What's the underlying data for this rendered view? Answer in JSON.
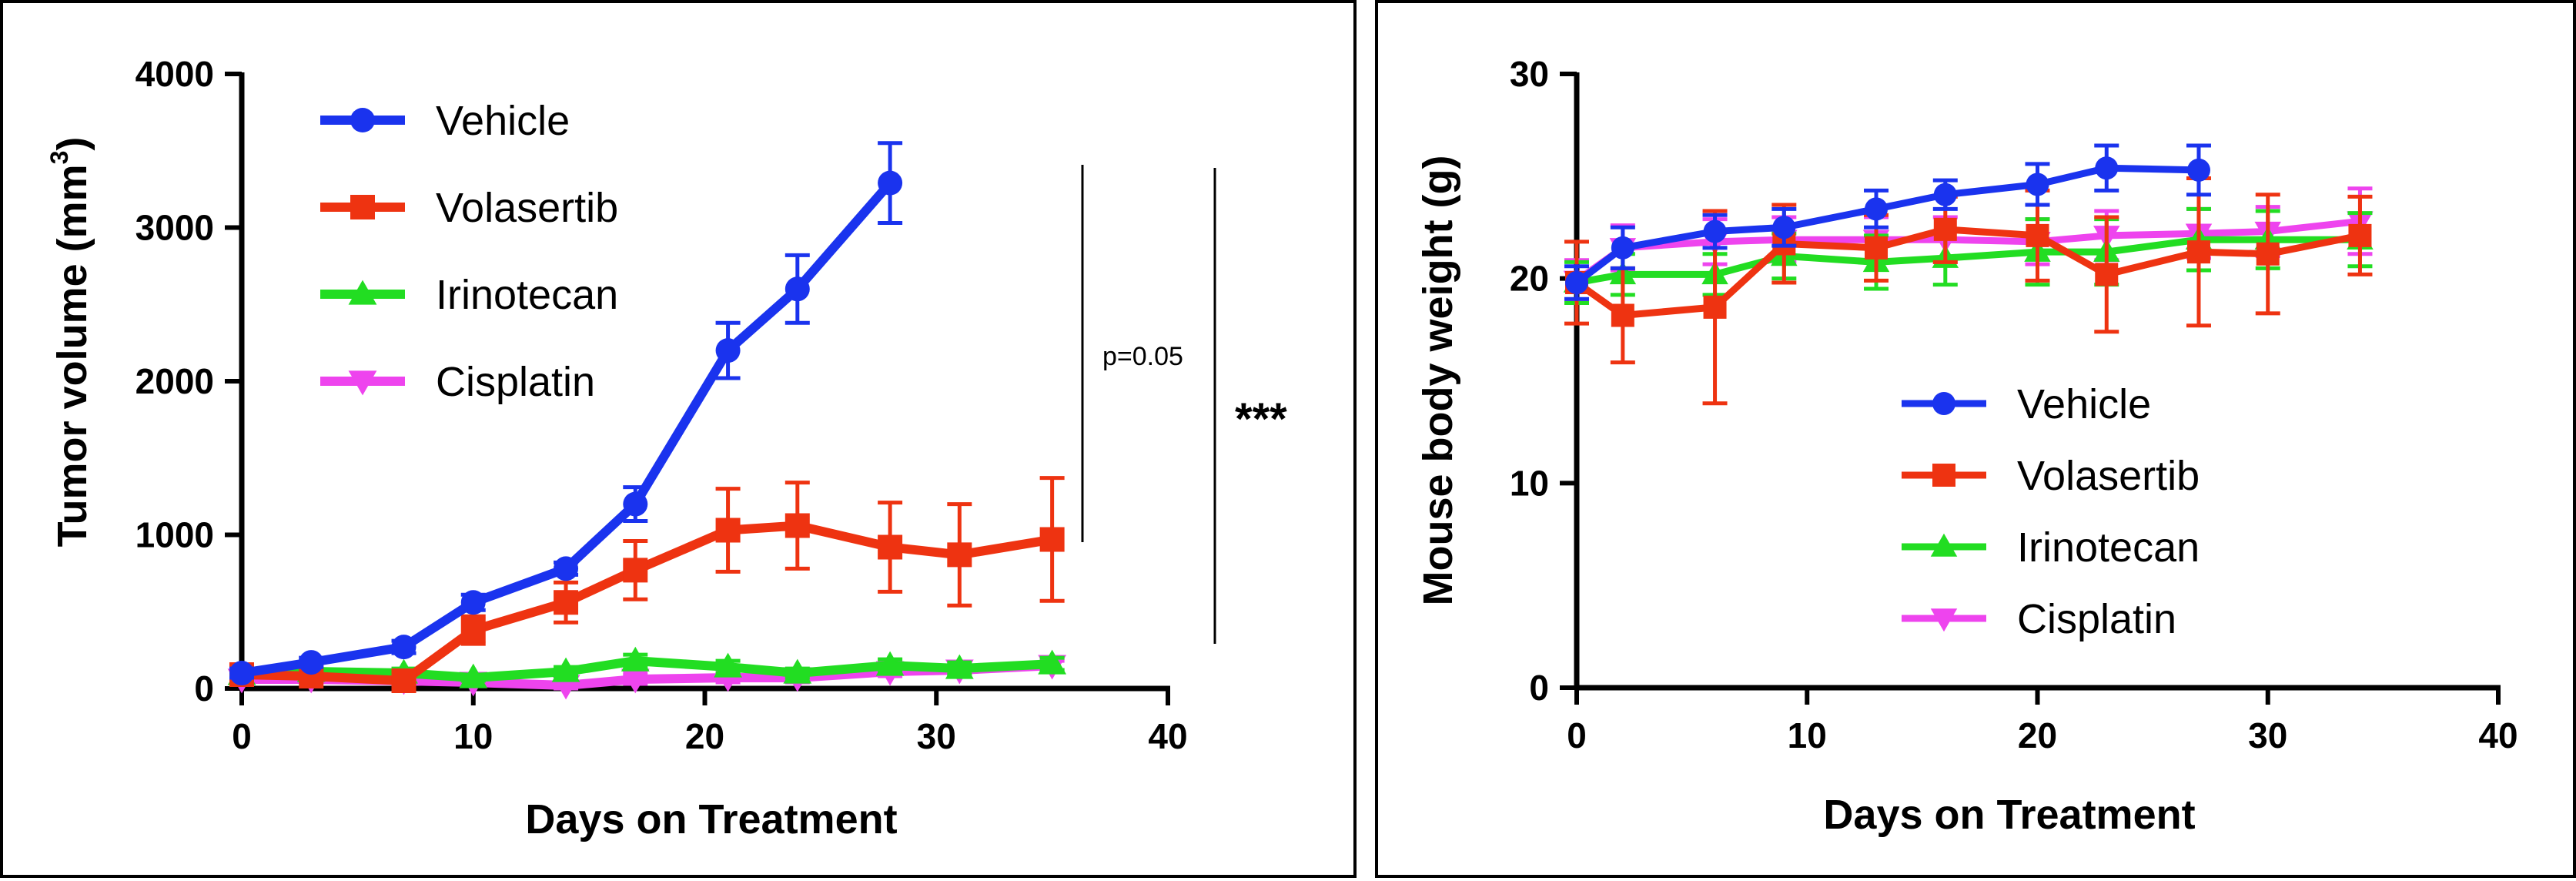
{
  "chart_data": [
    {
      "type": "line",
      "panel": "left",
      "xlabel": "Days on Treatment",
      "ylabel_main": "Tumor volume (mm",
      "ylabel_sup": "3",
      "ylabel_end": ")",
      "xlim": [
        0,
        40
      ],
      "ylim": [
        0,
        4000
      ],
      "xticks": [
        0,
        10,
        20,
        30,
        40
      ],
      "yticks": [
        0,
        1000,
        2000,
        3000,
        4000
      ],
      "xtick_labels": [
        "0",
        "10",
        "20",
        "30",
        "40"
      ],
      "ytick_labels": [
        "0",
        "1000",
        "2000",
        "3000",
        "4000"
      ],
      "legend_position": "top-left",
      "annotations": [
        {
          "text": "p=0.05",
          "kind": "bracket-inner"
        },
        {
          "text": "***",
          "kind": "bracket-outer"
        }
      ],
      "series": [
        {
          "name": "Vehicle",
          "color": "#1a33ee",
          "marker": "circle",
          "x": [
            0,
            3,
            7,
            10,
            14,
            17,
            21,
            24,
            28
          ],
          "y": [
            100,
            170,
            270,
            560,
            780,
            1200,
            2200,
            2600,
            3290
          ],
          "err": [
            30,
            30,
            40,
            50,
            40,
            110,
            180,
            220,
            260
          ]
        },
        {
          "name": "Volasertib",
          "color": "#ee3311",
          "marker": "square",
          "x": [
            0,
            3,
            7,
            10,
            14,
            17,
            21,
            24,
            28,
            31,
            35
          ],
          "y": [
            90,
            80,
            50,
            380,
            560,
            770,
            1030,
            1060,
            920,
            870,
            970
          ],
          "err": [
            30,
            30,
            20,
            90,
            130,
            190,
            270,
            280,
            290,
            330,
            400
          ]
        },
        {
          "name": "Irinotecan",
          "color": "#22dd22",
          "marker": "triangle-up",
          "x": [
            0,
            3,
            7,
            10,
            14,
            17,
            21,
            24,
            28,
            31,
            35
          ],
          "y": [
            90,
            110,
            100,
            70,
            110,
            180,
            140,
            100,
            150,
            130,
            160
          ],
          "err": [
            20,
            20,
            30,
            20,
            30,
            40,
            40,
            30,
            40,
            40,
            40
          ]
        },
        {
          "name": "Cisplatin",
          "color": "#ee44ee",
          "marker": "triangle-down",
          "x": [
            0,
            3,
            7,
            10,
            14,
            17,
            21,
            24,
            28,
            31,
            35
          ],
          "y": [
            60,
            60,
            50,
            40,
            20,
            60,
            70,
            70,
            110,
            120,
            150
          ],
          "err": [
            20,
            20,
            20,
            20,
            20,
            30,
            30,
            30,
            30,
            30,
            30
          ]
        }
      ]
    },
    {
      "type": "line",
      "panel": "right",
      "xlabel": "Days on Treatment",
      "ylabel": "Mouse body weight (g)",
      "xlim": [
        0,
        40
      ],
      "ylim": [
        0,
        30
      ],
      "xticks": [
        0,
        10,
        20,
        30,
        40
      ],
      "yticks": [
        0,
        10,
        20,
        30
      ],
      "xtick_labels": [
        "0",
        "10",
        "20",
        "30",
        "40"
      ],
      "ytick_labels": [
        "0",
        "10",
        "20",
        "30"
      ],
      "legend_position": "center",
      "series": [
        {
          "name": "Vehicle",
          "color": "#1a33ee",
          "marker": "circle",
          "x": [
            0,
            2,
            6,
            9,
            13,
            16,
            20,
            23,
            27
          ],
          "y": [
            19.8,
            21.5,
            22.3,
            22.5,
            23.4,
            24.1,
            24.6,
            25.4,
            25.3
          ],
          "err": [
            0.8,
            1.0,
            0.8,
            0.9,
            0.9,
            0.7,
            1.0,
            1.1,
            1.2
          ]
        },
        {
          "name": "Volasertib",
          "color": "#ee3311",
          "marker": "square",
          "x": [
            0,
            2,
            6,
            9,
            13,
            16,
            20,
            23,
            27,
            30,
            34
          ],
          "y": [
            19.8,
            18.2,
            18.6,
            21.7,
            21.5,
            22.4,
            22.1,
            20.2,
            21.3,
            21.2,
            22.1
          ],
          "err": [
            2.0,
            2.3,
            4.7,
            1.9,
            1.6,
            1.6,
            2.2,
            2.8,
            3.6,
            2.9,
            1.9
          ]
        },
        {
          "name": "Irinotecan",
          "color": "#22dd22",
          "marker": "triangle-up",
          "x": [
            0,
            2,
            6,
            9,
            13,
            16,
            20,
            23,
            27,
            30,
            34
          ],
          "y": [
            19.8,
            20.2,
            20.2,
            21.1,
            20.8,
            21.0,
            21.3,
            21.3,
            21.9,
            21.9,
            21.9
          ],
          "err": [
            1.0,
            1.0,
            1.0,
            1.1,
            1.3,
            1.3,
            1.6,
            1.6,
            1.5,
            1.4,
            1.3
          ]
        },
        {
          "name": "Cisplatin",
          "color": "#ee44ee",
          "marker": "triangle-down",
          "x": [
            0,
            2,
            6,
            9,
            13,
            16,
            20,
            23,
            27,
            30,
            34
          ],
          "y": [
            19.9,
            21.5,
            21.8,
            21.9,
            21.9,
            21.9,
            21.8,
            22.1,
            22.2,
            22.3,
            22.8
          ],
          "err": [
            1.0,
            1.1,
            1.1,
            1.1,
            1.1,
            1.1,
            1.1,
            1.2,
            1.2,
            1.2,
            1.6
          ]
        }
      ]
    }
  ]
}
